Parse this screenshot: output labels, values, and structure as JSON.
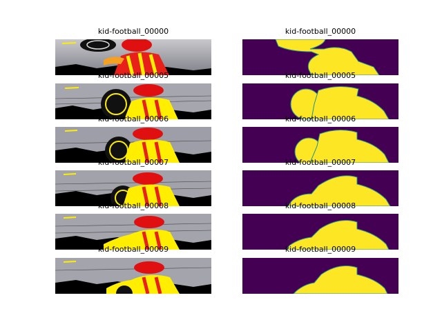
{
  "figure": {
    "rows": [
      {
        "left_title": "kid-football_00000",
        "right_title": "kid-football_00000"
      },
      {
        "left_title": "kid-football_00005",
        "right_title": "kid-football_00005"
      },
      {
        "left_title": "kid-football_00006",
        "right_title": "kid-football_00006"
      },
      {
        "left_title": "kid-football_00007",
        "right_title": "kid-football_00007"
      },
      {
        "left_title": "kid-football_00008",
        "right_title": "kid-football_00008"
      },
      {
        "left_title": "kid-football_00009",
        "right_title": "kid-football_00009"
      }
    ],
    "colors": {
      "mask_background": "#440154",
      "mask_foreground": "#fde725",
      "mask_edge": "#21918c",
      "photo_sky": "#9a9aa2",
      "photo_ground": "#000000",
      "shirt_yellow": "#ffee00",
      "shirt_red": "#e8201a",
      "cap_red": "#e01010"
    }
  }
}
